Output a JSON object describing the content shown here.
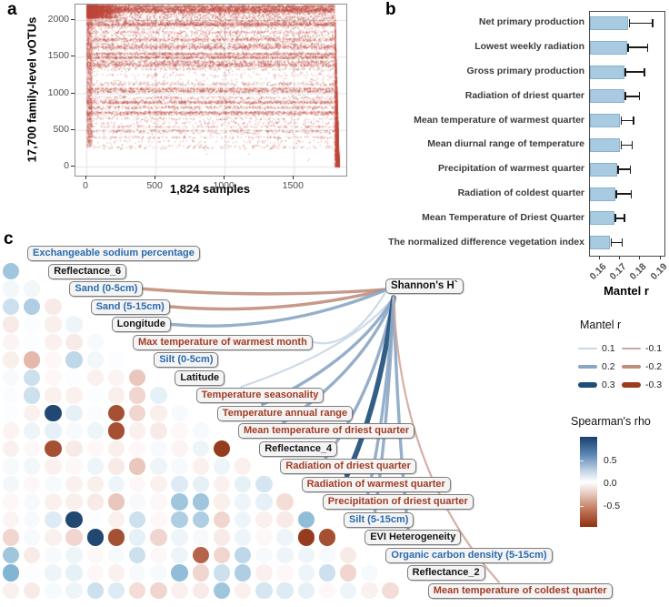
{
  "panels": {
    "a": "a",
    "b": "b",
    "c": "c"
  },
  "chart_data": [
    {
      "id": "a",
      "type": "scatter",
      "xlabel": "1,824 samples",
      "ylabel": "17,700 family-level vOTUs",
      "x_ticks": [
        0,
        500,
        1000,
        1500
      ],
      "y_ticks": [
        0,
        500,
        1000,
        1500,
        2000
      ],
      "xlim": [
        -60,
        1900
      ],
      "ylim": [
        -50,
        2260
      ],
      "n_samples": 1824,
      "n_votus": 17700,
      "point_color": "#c1493e",
      "grid": true,
      "description": "Presence of family-level vOTUs (rows, banded) across 1,824 samples; dense band 800-2200, sparse below, dense right-edge tail dropping to 0",
      "seed": 7
    },
    {
      "id": "b",
      "type": "bar",
      "orientation": "horizontal",
      "categories": [
        "Net primary production",
        "Lowest weekly radiation",
        "Gross primary production",
        "Radiation of driest quarter",
        "Mean temperature of warmest quarter",
        "Mean diurnal range of temperature",
        "Precipitation of warmest quarter",
        "Radiation of coldest quarter",
        "Mean Temperature of Driest Quarter",
        "The normalized difference vegetation index"
      ],
      "values": [
        0.1745,
        0.174,
        0.1725,
        0.1725,
        0.1705,
        0.1705,
        0.169,
        0.168,
        0.1675,
        0.1655
      ],
      "ci_low": [
        0.175,
        0.1745,
        0.173,
        0.173,
        0.171,
        0.171,
        0.1695,
        0.1685,
        0.168,
        0.166
      ],
      "ci_high": [
        0.1865,
        0.184,
        0.1825,
        0.18,
        0.177,
        0.1765,
        0.1755,
        0.176,
        0.1725,
        0.1715
      ],
      "xlabel": "Mantel r",
      "x_ticks": [
        "0.16",
        "0.17",
        "0.18",
        "0.19"
      ],
      "xlim": [
        0.155,
        0.192
      ],
      "bar_color": "#a9cbe2"
    },
    {
      "id": "c",
      "type": "heatmap",
      "subtype": "correlation-dot-matrix-with-mantel-network",
      "node": "Shannon's H`",
      "variables": [
        {
          "name": "Exchangeable sodium percentage",
          "color": "blue"
        },
        {
          "name": "Reflectance_6",
          "color": "black"
        },
        {
          "name": "Sand (0-5cm)",
          "color": "blue"
        },
        {
          "name": "Sand (5-15cm)",
          "color": "blue"
        },
        {
          "name": "Longitude",
          "color": "black"
        },
        {
          "name": "Max temperature of warmest month",
          "color": "red"
        },
        {
          "name": "Silt (0-5cm)",
          "color": "blue"
        },
        {
          "name": "Latitude",
          "color": "black"
        },
        {
          "name": "Temperature seasonality",
          "color": "red"
        },
        {
          "name": "Temperature annual range",
          "color": "red"
        },
        {
          "name": "Mean temperature of driest quarter",
          "color": "red"
        },
        {
          "name": "Reflectance_4",
          "color": "black"
        },
        {
          "name": "Radiation of driest quarter",
          "color": "red"
        },
        {
          "name": "Radiation of warmest quarter",
          "color": "red"
        },
        {
          "name": "Precipitation of driest quarter",
          "color": "red"
        },
        {
          "name": "Silt (5-15cm)",
          "color": "blue"
        },
        {
          "name": "EVI Heterogeneity",
          "color": "black"
        },
        {
          "name": "Organic carbon density (5-15cm)",
          "color": "blue"
        },
        {
          "name": "Reflectance_2",
          "color": "black"
        },
        {
          "name": "Mean temperature of coldest quarter",
          "color": "red"
        }
      ],
      "edges": [
        {
          "to": 3,
          "r": -0.2
        },
        {
          "to": 4,
          "r": -0.2
        },
        {
          "to": 5,
          "r": 0.2
        },
        {
          "to": 6,
          "r": 0.1
        },
        {
          "to": 9,
          "r": 0.1
        },
        {
          "to": 10,
          "r": 0.2
        },
        {
          "to": 11,
          "r": 0.2
        },
        {
          "to": 13,
          "r": 0.2
        },
        {
          "to": 14,
          "r": 0.3
        },
        {
          "to": 15,
          "r": 0.2
        },
        {
          "to": 16,
          "r": 0.2
        },
        {
          "to": 17,
          "r": 0.2
        },
        {
          "to": 20,
          "r": -0.1
        }
      ],
      "spearman_lower_triangle": [
        [
          0.45
        ],
        [
          0.08,
          0.08
        ],
        [
          0.3,
          0.4,
          -0.15
        ],
        [
          -0.15,
          0.03,
          -0.12,
          0.1
        ],
        [
          -0.08,
          0.02,
          -0.1,
          -0.15,
          0.05
        ],
        [
          -0.12,
          -0.4,
          -0.05,
          0.35,
          0.08,
          0.02
        ],
        [
          0.05,
          0.3,
          -0.05,
          0.02,
          -0.1,
          -0.08,
          -0.35
        ],
        [
          0.03,
          0.3,
          -0.1,
          -0.1,
          0.02,
          -0.12,
          -0.3,
          0.15
        ],
        [
          0.02,
          -0.1,
          0.75,
          0.15,
          0.03,
          -0.7,
          -0.3,
          -0.12,
          0.05
        ],
        [
          -0.08,
          0.1,
          0.15,
          0.05,
          0.1,
          -0.7,
          -0.1,
          -0.15,
          -0.05,
          0.05
        ],
        [
          -0.1,
          -0.05,
          -0.7,
          -0.15,
          -0.05,
          -0.12,
          -0.05,
          0.05,
          -0.08,
          0.1,
          -0.75
        ],
        [
          0.05,
          0.08,
          -0.1,
          -0.05,
          0.1,
          -0.15,
          -0.35,
          0.1,
          0.05,
          -0.1,
          0.1,
          -0.1
        ],
        [
          0.08,
          -0.05,
          0.05,
          -0.1,
          -0.12,
          0.1,
          -0.05,
          -0.1,
          0.2,
          0.15,
          -0.1,
          0.15,
          0.25
        ],
        [
          -0.05,
          0.05,
          -0.1,
          -0.12,
          -0.15,
          -0.35,
          0.05,
          -0.05,
          0.45,
          0.45,
          -0.12,
          0.1,
          0.15,
          -0.25
        ],
        [
          -0.08,
          0.05,
          0.2,
          0.75,
          0.02,
          -0.1,
          0.3,
          -0.05,
          0.4,
          0.4,
          -0.3,
          0.1,
          -0.1,
          -0.15,
          0.5
        ],
        [
          -0.3,
          0.05,
          -0.1,
          -0.3,
          0.75,
          -0.7,
          0.15,
          -0.3,
          0.1,
          0.05,
          -0.15,
          0.1,
          -0.05,
          0.1,
          -0.75,
          -0.7
        ],
        [
          0.45,
          -0.15,
          0.05,
          0.1,
          -0.05,
          0.05,
          0.3,
          -0.05,
          0.1,
          -0.65,
          -0.3,
          0.35,
          0.05,
          0.1,
          0.1,
          0.05,
          -0.15
        ],
        [
          0.55,
          0.02,
          0.1,
          0.15,
          -0.05,
          -0.1,
          0.05,
          0.05,
          0.5,
          -0.3,
          0.3,
          0.4,
          -0.1,
          -0.05,
          0.1,
          0.3,
          -0.3,
          0.05
        ],
        [
          -0.1,
          -0.15,
          0.05,
          0.1,
          0.3,
          0.2,
          -0.25,
          -0.3,
          -0.1,
          -0.15,
          0.45,
          -0.1,
          0.25,
          0.2,
          0.15,
          -0.05,
          0.1,
          -0.1,
          -0.25
        ]
      ],
      "legend": {
        "mantel_title": "Mantel r",
        "mantel_entries": [
          {
            "label": "0.1",
            "r": 0.1
          },
          {
            "label": "-0.1",
            "r": -0.1
          },
          {
            "label": "0.2",
            "r": 0.2
          },
          {
            "label": "-0.2",
            "r": -0.2
          },
          {
            "label": "0.3",
            "r": 0.3
          },
          {
            "label": "-0.3",
            "r": -0.3
          }
        ],
        "mantel_colors": {
          "0.1": "#c9d7e6",
          "0.2": "#8aa6c4",
          "0.3": "#1d4e79",
          "-0.1": "#d2a79b",
          "-0.2": "#c08e7c",
          "-0.3": "#9c3b1e"
        },
        "spearman_title": "Spearman's rho",
        "spearman_ticks": [
          "0.5",
          "0.0",
          "-0.5"
        ],
        "spearman_range": [
          1.0,
          -1.0
        ],
        "colorbar_top": "#17406d",
        "colorbar_mid": "#ffffff",
        "colorbar_bottom": "#8f2f10"
      }
    }
  ]
}
